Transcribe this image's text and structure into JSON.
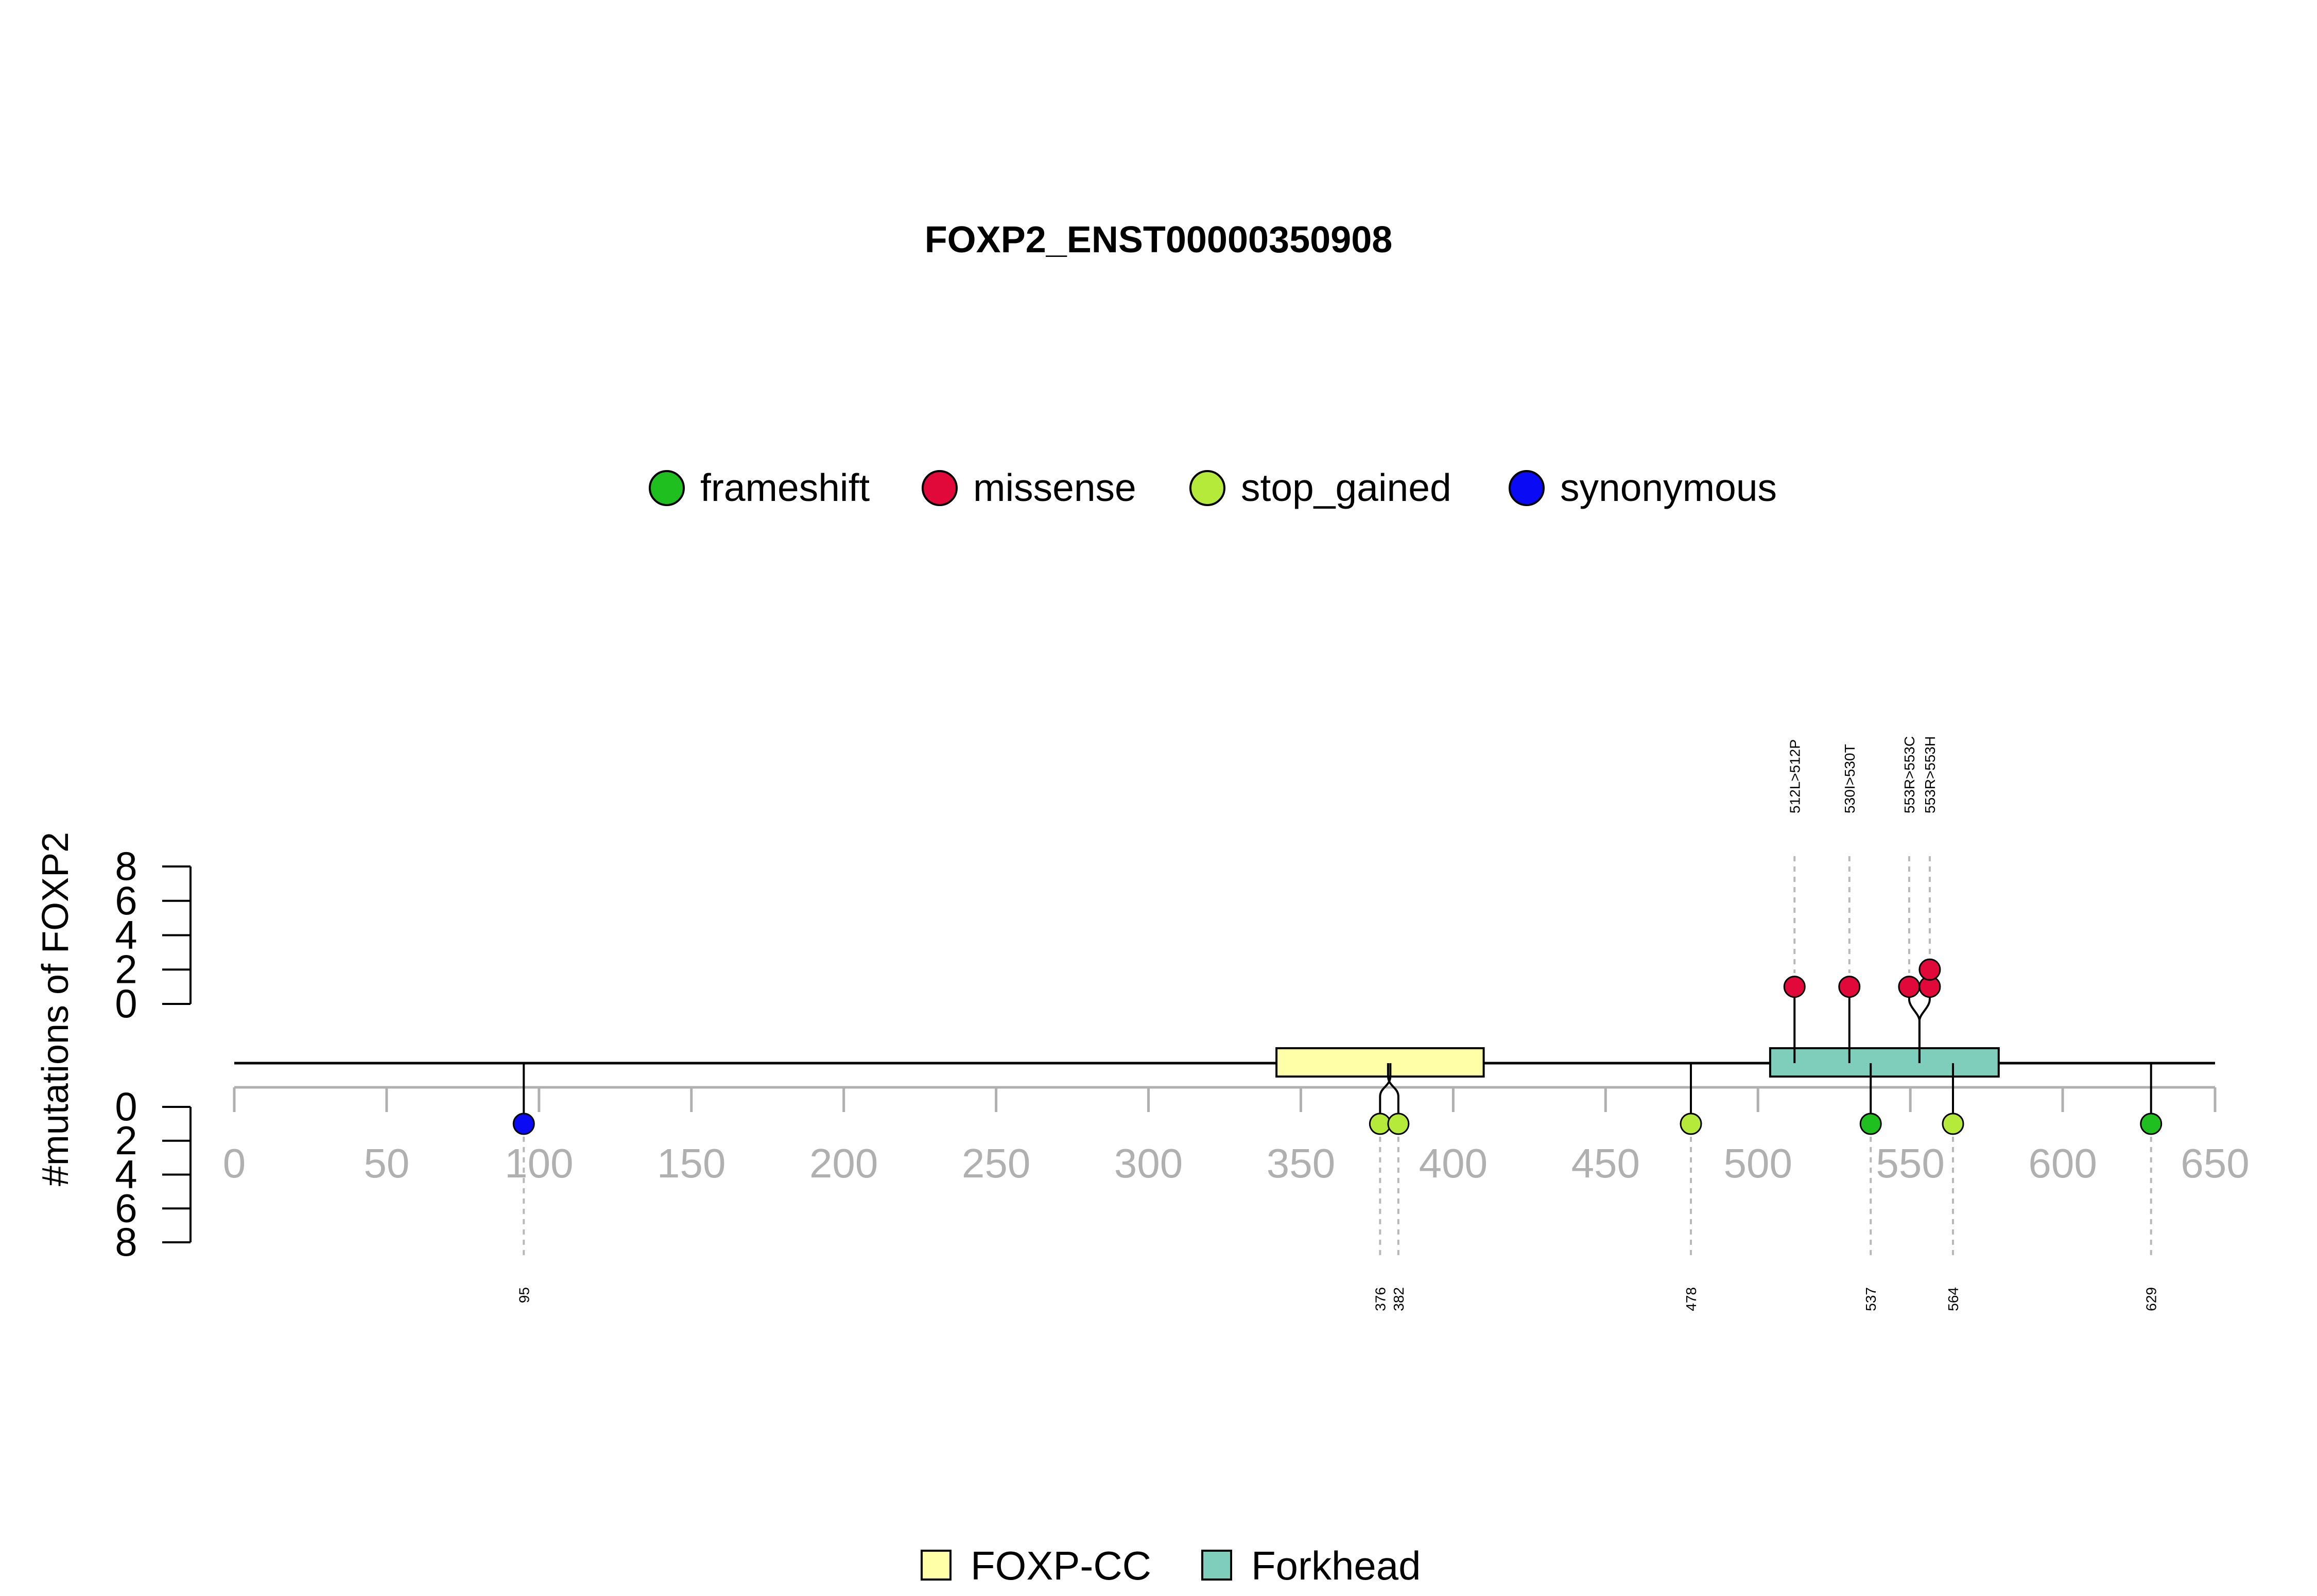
{
  "chart_data": {
    "type": "lollipop",
    "title": "FOXP2_ENST00000350908",
    "ylabel": "#mutations of FOXP2",
    "xlim": [
      0,
      650
    ],
    "x_ticks": [
      0,
      50,
      100,
      150,
      200,
      250,
      300,
      350,
      400,
      450,
      500,
      550,
      600,
      650
    ],
    "y_ticks_upper": [
      0,
      2,
      4,
      6,
      8
    ],
    "y_ticks_lower": [
      0,
      2,
      4,
      6,
      8
    ],
    "mutation_legend": [
      {
        "label": "frameshift",
        "color": "#1fbf1f"
      },
      {
        "label": "missense",
        "color": "#e0093a"
      },
      {
        "label": "stop_gained",
        "color": "#b5ea3a"
      },
      {
        "label": "synonymous",
        "color": "#0a0af5"
      }
    ],
    "domains": [
      {
        "name": "FOXP-CC",
        "start": 342,
        "end": 410,
        "color": "#ffffa8"
      },
      {
        "name": "Forkhead",
        "start": 504,
        "end": 579,
        "color": "#7fcdbb"
      }
    ],
    "mutations_upper": [
      {
        "position": 512,
        "label": "512L>512P",
        "count": 1,
        "type": "missense"
      },
      {
        "position": 530,
        "label": "530I>530T",
        "count": 1,
        "type": "missense"
      },
      {
        "position": 553,
        "label": "553R>553C",
        "count": 1,
        "type": "missense"
      },
      {
        "position": 553,
        "label": "553R>553H",
        "count": 2,
        "type": "missense"
      }
    ],
    "mutations_lower": [
      {
        "position": 95,
        "label": "95",
        "count": 1,
        "type": "synonymous"
      },
      {
        "position": 376,
        "label": "376",
        "count": 1,
        "type": "stop_gained"
      },
      {
        "position": 382,
        "label": "382",
        "count": 1,
        "type": "stop_gained"
      },
      {
        "position": 478,
        "label": "478",
        "count": 1,
        "type": "stop_gained"
      },
      {
        "position": 537,
        "label": "537",
        "count": 1,
        "type": "frameshift"
      },
      {
        "position": 564,
        "label": "564",
        "count": 1,
        "type": "stop_gained"
      },
      {
        "position": 629,
        "label": "629",
        "count": 1,
        "type": "frameshift"
      }
    ]
  }
}
